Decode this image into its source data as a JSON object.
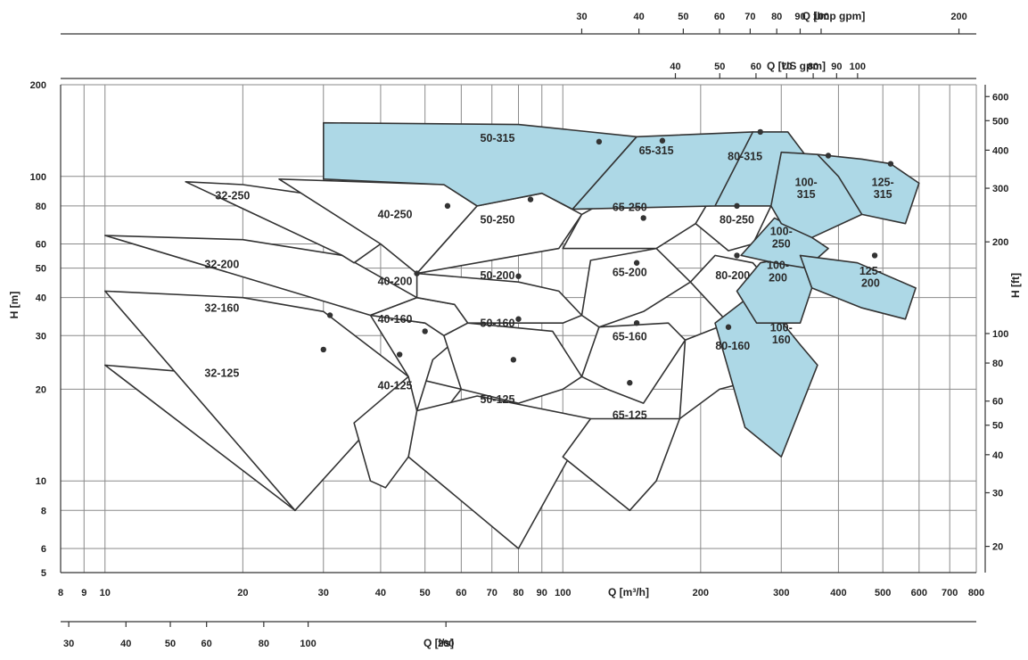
{
  "colors": {
    "highlight_fill": "#add8e6",
    "white_fill": "#ffffff",
    "grid": "#8a8a8a",
    "outline": "#333333",
    "text": "#222222"
  },
  "chart_data": {
    "type": "area",
    "title": "",
    "xlabel": "Q [m³/h]",
    "ylabel": "H [m]",
    "xscale": "log",
    "yscale": "log",
    "xlim": [
      8,
      800
    ],
    "ylim": [
      5,
      200
    ],
    "grid": true,
    "x_ticks": [
      8,
      9,
      10,
      20,
      30,
      40,
      50,
      60,
      70,
      80,
      90,
      100,
      200,
      300,
      400,
      500,
      600,
      700,
      800
    ],
    "x_tick_labels": [
      "8",
      "9",
      "10",
      "20",
      "30",
      "40",
      "50",
      "60",
      "70",
      "80",
      "90",
      "100",
      "200",
      "300",
      "400",
      "500",
      "600",
      "700",
      "800"
    ],
    "y_ticks": [
      5,
      6,
      8,
      10,
      20,
      30,
      40,
      50,
      60,
      80,
      100,
      200
    ],
    "y_tick_labels": [
      "5",
      "6",
      "8",
      "10",
      "20",
      "30",
      "40",
      "50",
      "60",
      "80",
      "100",
      "200"
    ],
    "secondary_axes": [
      {
        "position": "top-outer",
        "label": "Q [Imp gpm]",
        "ticks": [
          30,
          40,
          50,
          60,
          70,
          80,
          90,
          100,
          200,
          300,
          400,
          500,
          600,
          700,
          800,
          1000,
          2000
        ],
        "tick_labels": [
          "30",
          "40",
          "50",
          "60",
          "70",
          "80",
          "90",
          "100",
          "200",
          "300",
          "400",
          "500",
          "600",
          "700",
          "800",
          "1000",
          "2000"
        ]
      },
      {
        "position": "top-inner",
        "label": "Q [US gpm]",
        "ticks": [
          40,
          50,
          60,
          70,
          80,
          90,
          100,
          200,
          300,
          400,
          500,
          600,
          700,
          800,
          1000,
          2000,
          3000
        ],
        "tick_labels": [
          "40",
          "50",
          "60",
          "70",
          "80",
          "90",
          "100",
          "200",
          "300",
          "400",
          "500",
          "600",
          "700",
          "800",
          "1000",
          "2000",
          "3000"
        ]
      },
      {
        "position": "bottom",
        "label": "Q [l/s]",
        "ticks": [
          3,
          4,
          5,
          6,
          8,
          10,
          20,
          30,
          40,
          50,
          60,
          80,
          100,
          200
        ],
        "tick_labels": [
          "3",
          "4",
          "5",
          "6",
          "8",
          "10",
          "20",
          "30",
          "40",
          "50",
          "60",
          "80",
          "100",
          "200"
        ]
      },
      {
        "position": "right",
        "label": "H [ft]",
        "ticks": [
          20,
          30,
          40,
          50,
          60,
          80,
          100,
          200,
          300,
          400,
          500,
          600
        ],
        "tick_labels": [
          "20",
          "30",
          "40",
          "50",
          "60",
          "80",
          "100",
          "200",
          "300",
          "400",
          "500",
          "600"
        ]
      }
    ],
    "regions": [
      {
        "name": "32-125",
        "fill": "white",
        "label_at": [
          18,
          22
        ],
        "points": [
          [
            10,
            24
          ],
          [
            20,
            22
          ],
          [
            35,
            15.5
          ],
          [
            26,
            8
          ]
        ],
        "bep": [
          30,
          27
        ]
      },
      {
        "name": "32-160",
        "fill": "white",
        "label_at": [
          18,
          36
        ],
        "points": [
          [
            10,
            42
          ],
          [
            20,
            40
          ],
          [
            30,
            36
          ],
          [
            46,
            22
          ],
          [
            38,
            15
          ],
          [
            26,
            8
          ]
        ],
        "bep": [
          31,
          35
        ]
      },
      {
        "name": "32-200",
        "fill": "white",
        "label_at": [
          18,
          50
        ],
        "points": [
          [
            10,
            64
          ],
          [
            20,
            62
          ],
          [
            33,
            55
          ],
          [
            48,
            40
          ],
          [
            38,
            35
          ]
        ]
      },
      {
        "name": "32-250",
        "fill": "white",
        "label_at": [
          19,
          84
        ],
        "points": [
          [
            15,
            96
          ],
          [
            20,
            94
          ],
          [
            32,
            85
          ],
          [
            40,
            60
          ],
          [
            35,
            52
          ],
          [
            33,
            55
          ]
        ]
      },
      {
        "name": "40-125",
        "fill": "white",
        "label_at": [
          43,
          20
        ],
        "points": [
          [
            35,
            15.5
          ],
          [
            46,
            22
          ],
          [
            60,
            20
          ],
          [
            46,
            12
          ],
          [
            41,
            9.5
          ],
          [
            38,
            10
          ]
        ],
        "bep": [
          44,
          26
        ]
      },
      {
        "name": "40-160",
        "fill": "white",
        "label_at": [
          43,
          33
        ],
        "points": [
          [
            38,
            35
          ],
          [
            50,
            33
          ],
          [
            60,
            30
          ],
          [
            52,
            25
          ],
          [
            48,
            17
          ],
          [
            46,
            22
          ]
        ],
        "bep": [
          50,
          31
        ]
      },
      {
        "name": "40-200",
        "fill": "white",
        "label_at": [
          43,
          44
        ],
        "points": [
          [
            38,
            35
          ],
          [
            48,
            40
          ],
          [
            58,
            38
          ],
          [
            62,
            33
          ],
          [
            55,
            30
          ],
          [
            50,
            33
          ]
        ],
        "bep": [
          48,
          48
        ]
      },
      {
        "name": "40-250",
        "fill": "white",
        "label_at": [
          43,
          73
        ],
        "points": [
          [
            24,
            98
          ],
          [
            55,
            94
          ],
          [
            65,
            80
          ],
          [
            48,
            48
          ],
          [
            40,
            60
          ]
        ],
        "bep": [
          56,
          80
        ]
      },
      {
        "name": "50-125",
        "fill": "white",
        "label_at": [
          72,
          18
        ],
        "points": [
          [
            46,
            12
          ],
          [
            48,
            17
          ],
          [
            65,
            19
          ],
          [
            115,
            16
          ],
          [
            80,
            6
          ]
        ],
        "bep": [
          78,
          25
        ]
      },
      {
        "name": "50-160",
        "fill": "white",
        "label_at": [
          72,
          32
        ],
        "points": [
          [
            55,
            30
          ],
          [
            62,
            33
          ],
          [
            95,
            31
          ],
          [
            110,
            22
          ],
          [
            100,
            20
          ],
          [
            80,
            18
          ],
          [
            60,
            20
          ]
        ],
        "bep": [
          80,
          34
        ]
      },
      {
        "name": "50-200",
        "fill": "white",
        "label_at": [
          72,
          46
        ],
        "points": [
          [
            48,
            40
          ],
          [
            58,
            38
          ],
          [
            62,
            33
          ],
          [
            100,
            33
          ],
          [
            110,
            35
          ],
          [
            98,
            42
          ],
          [
            80,
            45
          ],
          [
            48,
            48
          ]
        ],
        "bep": [
          80,
          47
        ]
      },
      {
        "name": "50-250",
        "fill": "white",
        "label_at": [
          72,
          70
        ],
        "points": [
          [
            48,
            48
          ],
          [
            65,
            80
          ],
          [
            90,
            88
          ],
          [
            110,
            75
          ],
          [
            98,
            58
          ],
          [
            80,
            55
          ]
        ],
        "bep": [
          85,
          84
        ]
      },
      {
        "name": "50-315",
        "fill": "blue",
        "label_at": [
          72,
          130
        ],
        "points": [
          [
            30,
            150
          ],
          [
            80,
            148
          ],
          [
            145,
            135
          ],
          [
            105,
            78
          ],
          [
            90,
            88
          ],
          [
            65,
            80
          ],
          [
            55,
            94
          ],
          [
            30,
            98
          ]
        ],
        "bep": [
          120,
          130
        ]
      },
      {
        "name": "65-125",
        "fill": "white",
        "label_at": [
          140,
          16
        ],
        "points": [
          [
            100,
            12
          ],
          [
            115,
            16
          ],
          [
            180,
            16
          ],
          [
            160,
            10
          ],
          [
            140,
            8
          ]
        ],
        "bep": [
          140,
          21
        ]
      },
      {
        "name": "65-160",
        "fill": "white",
        "label_at": [
          140,
          29
        ],
        "points": [
          [
            110,
            22
          ],
          [
            120,
            32
          ],
          [
            170,
            33
          ],
          [
            185,
            29
          ],
          [
            150,
            18
          ],
          [
            125,
            20
          ]
        ],
        "bep": [
          145,
          33
        ]
      },
      {
        "name": "65-200",
        "fill": "white",
        "label_at": [
          140,
          47
        ],
        "points": [
          [
            110,
            35
          ],
          [
            120,
            32
          ],
          [
            150,
            36
          ],
          [
            190,
            45
          ],
          [
            160,
            58
          ],
          [
            115,
            53
          ]
        ],
        "bep": [
          145,
          52
        ]
      },
      {
        "name": "65-250",
        "fill": "white",
        "label_at": [
          140,
          77
        ],
        "points": [
          [
            100,
            58
          ],
          [
            160,
            58
          ],
          [
            195,
            70
          ],
          [
            215,
            80
          ],
          [
            220,
            95
          ],
          [
            150,
            97
          ],
          [
            110,
            75
          ]
        ],
        "bep": [
          150,
          73
        ]
      },
      {
        "name": "65-315",
        "fill": "blue",
        "label_at": [
          160,
          118
        ],
        "points": [
          [
            105,
            78
          ],
          [
            215,
            80
          ],
          [
            300,
            120
          ],
          [
            260,
            140
          ],
          [
            145,
            135
          ]
        ],
        "bep": [
          165,
          131
        ]
      },
      {
        "name": "80-160",
        "fill": "white",
        "label_at": [
          235,
          27
        ],
        "points": [
          [
            180,
            16
          ],
          [
            220,
            20
          ],
          [
            280,
            22
          ],
          [
            265,
            28
          ],
          [
            230,
            33
          ],
          [
            185,
            29
          ]
        ],
        "bep": [
          230,
          32
        ]
      },
      {
        "name": "80-200",
        "fill": "white",
        "label_at": [
          235,
          46
        ],
        "points": [
          [
            190,
            45
          ],
          [
            215,
            55
          ],
          [
            260,
            52
          ],
          [
            290,
            43
          ],
          [
            270,
            33
          ],
          [
            230,
            33
          ]
        ],
        "bep": [
          240,
          55
        ]
      },
      {
        "name": "80-250",
        "fill": "white",
        "label_at": [
          240,
          70
        ],
        "points": [
          [
            195,
            70
          ],
          [
            220,
            95
          ],
          [
            250,
            88
          ],
          [
            285,
            80
          ],
          [
            260,
            60
          ],
          [
            230,
            57
          ]
        ],
        "bep": [
          240,
          80
        ]
      },
      {
        "name": "80-315",
        "fill": "blue",
        "label_at": [
          250,
          113
        ],
        "points": [
          [
            215,
            80
          ],
          [
            260,
            140
          ],
          [
            310,
            140
          ],
          [
            350,
            110
          ],
          [
            285,
            80
          ]
        ],
        "bep": [
          270,
          140
        ]
      },
      {
        "name": "100-160",
        "fill": "blue",
        "label_at": [
          300,
          30
        ],
        "points": [
          [
            215,
            33
          ],
          [
            265,
            42
          ],
          [
            330,
            28
          ],
          [
            360,
            24
          ],
          [
            300,
            12
          ],
          [
            250,
            15
          ]
        ]
      },
      {
        "name": "100-200",
        "fill": "blue",
        "label_at": [
          295,
          48
        ],
        "points": [
          [
            240,
            42
          ],
          [
            270,
            52
          ],
          [
            330,
            55
          ],
          [
            350,
            43
          ],
          [
            330,
            33
          ],
          [
            265,
            33
          ]
        ]
      },
      {
        "name": "100-250",
        "fill": "blue",
        "label_at": [
          300,
          62
        ],
        "points": [
          [
            245,
            55
          ],
          [
            290,
            73
          ],
          [
            350,
            63
          ],
          [
            380,
            58
          ],
          [
            340,
            50
          ],
          [
            290,
            52
          ]
        ]
      },
      {
        "name": "100-315",
        "fill": "blue",
        "label_at": [
          340,
          90
        ],
        "points": [
          [
            285,
            80
          ],
          [
            300,
            120
          ],
          [
            360,
            118
          ],
          [
            430,
            100
          ],
          [
            450,
            75
          ],
          [
            350,
            63
          ],
          [
            300,
            70
          ]
        ],
        "bep": [
          380,
          117
        ]
      },
      {
        "name": "125-200",
        "fill": "blue",
        "label_at": [
          470,
          46
        ],
        "points": [
          [
            330,
            55
          ],
          [
            440,
            52
          ],
          [
            590,
            43
          ],
          [
            560,
            34
          ],
          [
            450,
            37
          ],
          [
            350,
            43
          ]
        ],
        "bep": [
          480,
          55
        ]
      },
      {
        "name": "125-315",
        "fill": "blue",
        "label_at": [
          500,
          90
        ],
        "points": [
          [
            360,
            118
          ],
          [
            450,
            114
          ],
          [
            520,
            110
          ],
          [
            600,
            95
          ],
          [
            560,
            70
          ],
          [
            450,
            75
          ],
          [
            400,
            100
          ]
        ],
        "bep": [
          520,
          110
        ]
      }
    ]
  }
}
